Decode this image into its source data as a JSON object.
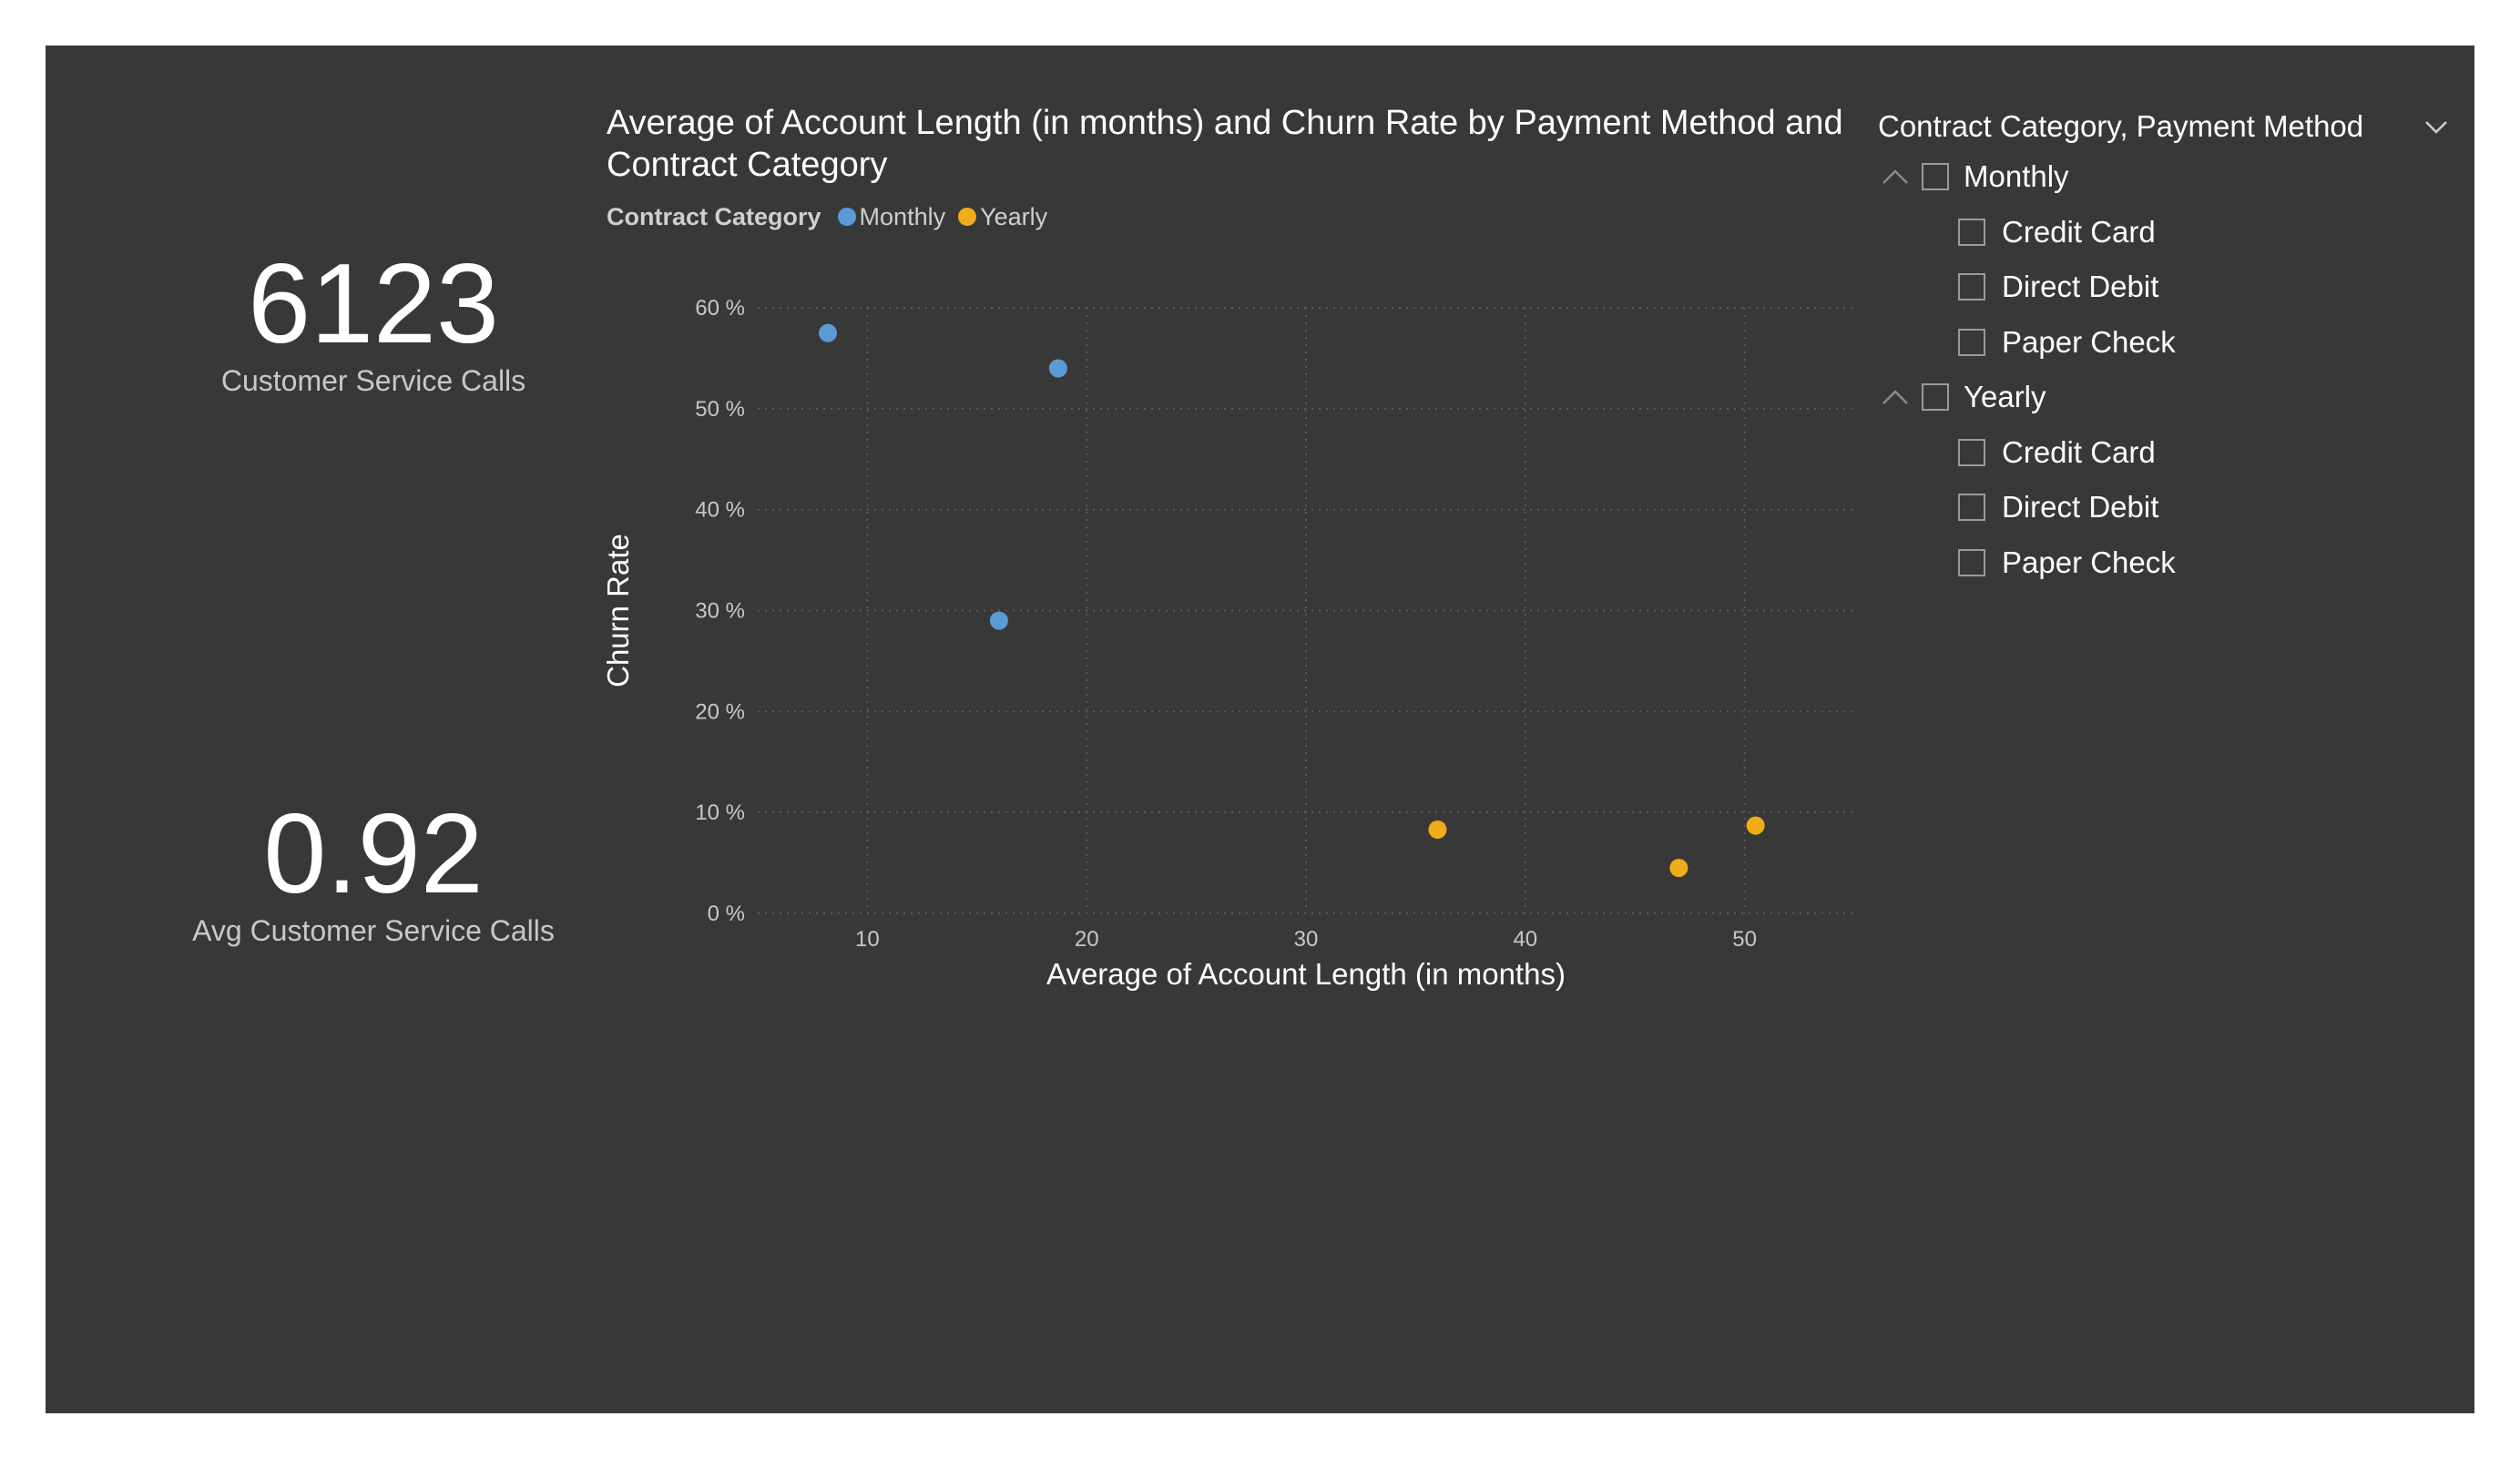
{
  "kpis": [
    {
      "value": "6123",
      "label": "Customer Service Calls"
    },
    {
      "value": "0.92",
      "label": "Avg Customer Service Calls"
    }
  ],
  "chart": {
    "title": "Average of Account Length (in months) and Churn Rate by Payment Method and Contract Category",
    "legend_title": "Contract Category",
    "legend_items": [
      {
        "label": "Monthly",
        "color": "#5b9bd5"
      },
      {
        "label": "Yearly",
        "color": "#f0ad1a"
      }
    ]
  },
  "chart_data": {
    "type": "scatter",
    "title": "Average of Account Length (in months) and Churn Rate by Payment Method and Contract Category",
    "xlabel": "Average of Account Length (in months)",
    "ylabel": "Churn Rate",
    "xlim": [
      5,
      55
    ],
    "ylim": [
      0,
      60
    ],
    "x_ticks": [
      "10",
      "20",
      "30",
      "40",
      "50"
    ],
    "y_ticks": [
      "0 %",
      "10 %",
      "20 %",
      "30 %",
      "40 %",
      "50 %",
      "60 %"
    ],
    "grid": true,
    "legend_position": "top-left",
    "series": [
      {
        "name": "Monthly",
        "color": "#5b9bd5",
        "points": [
          {
            "x": 8.2,
            "y": 57.5
          },
          {
            "x": 18.7,
            "y": 54.0
          },
          {
            "x": 16.0,
            "y": 29.0
          }
        ]
      },
      {
        "name": "Yearly",
        "color": "#f0ad1a",
        "points": [
          {
            "x": 36.0,
            "y": 8.3
          },
          {
            "x": 47.0,
            "y": 4.5
          },
          {
            "x": 50.5,
            "y": 8.7
          }
        ]
      }
    ]
  },
  "slicer": {
    "title": "Contract Category, Payment Method",
    "groups": [
      {
        "label": "Monthly",
        "children": [
          "Credit Card",
          "Direct Debit",
          "Paper Check"
        ]
      },
      {
        "label": "Yearly",
        "children": [
          "Credit Card",
          "Direct Debit",
          "Paper Check"
        ]
      }
    ]
  }
}
